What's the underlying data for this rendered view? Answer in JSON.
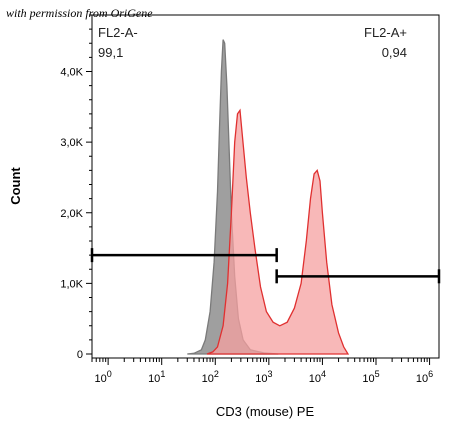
{
  "watermark": "with permission from OriGene",
  "chart_data": {
    "type": "area",
    "xlabel": "CD3 (mouse) PE",
    "ylabel": "Count",
    "x_scale": "log",
    "xlim": [
      0.5,
      1500000
    ],
    "ylim": [
      0,
      4800
    ],
    "y_ticks": [
      {
        "value": 0,
        "label": "0"
      },
      {
        "value": 1000,
        "label": "1,0K"
      },
      {
        "value": 2000,
        "label": "2,0K"
      },
      {
        "value": 3000,
        "label": "3,0K"
      },
      {
        "value": 4000,
        "label": "4,0K"
      }
    ],
    "x_ticks": [
      {
        "value": 1,
        "base": "10",
        "exp": "0"
      },
      {
        "value": 10,
        "base": "10",
        "exp": "1"
      },
      {
        "value": 100,
        "base": "10",
        "exp": "2"
      },
      {
        "value": 1000,
        "base": "10",
        "exp": "3"
      },
      {
        "value": 10000,
        "base": "10",
        "exp": "4"
      },
      {
        "value": 100000,
        "base": "10",
        "exp": "5"
      },
      {
        "value": 1000000,
        "base": "10",
        "exp": "6"
      }
    ],
    "series": [
      {
        "color": "#7a7a7a",
        "fill": "#9a9a9a",
        "points": [
          [
            30,
            0
          ],
          [
            40,
            10
          ],
          [
            55,
            60
          ],
          [
            65,
            200
          ],
          [
            80,
            600
          ],
          [
            95,
            1300
          ],
          [
            110,
            2300
          ],
          [
            120,
            3200
          ],
          [
            130,
            4000
          ],
          [
            140,
            4450
          ],
          [
            150,
            4400
          ],
          [
            165,
            3800
          ],
          [
            180,
            3000
          ],
          [
            200,
            2000
          ],
          [
            230,
            1100
          ],
          [
            270,
            500
          ],
          [
            330,
            200
          ],
          [
            450,
            60
          ],
          [
            800,
            15
          ],
          [
            1500,
            0
          ]
        ]
      },
      {
        "color": "#e03030",
        "fill": "#f5a0a0",
        "points": [
          [
            70,
            0
          ],
          [
            90,
            30
          ],
          [
            110,
            100
          ],
          [
            140,
            400
          ],
          [
            170,
            1000
          ],
          [
            200,
            2000
          ],
          [
            230,
            3000
          ],
          [
            260,
            3400
          ],
          [
            290,
            3450
          ],
          [
            320,
            3100
          ],
          [
            380,
            2500
          ],
          [
            450,
            2000
          ],
          [
            550,
            1500
          ],
          [
            700,
            950
          ],
          [
            900,
            600
          ],
          [
            1200,
            450
          ],
          [
            1600,
            400
          ],
          [
            2200,
            450
          ],
          [
            3000,
            650
          ],
          [
            4000,
            1000
          ],
          [
            5000,
            1600
          ],
          [
            6000,
            2200
          ],
          [
            7000,
            2550
          ],
          [
            8000,
            2600
          ],
          [
            9000,
            2450
          ],
          [
            10000,
            2000
          ],
          [
            12000,
            1300
          ],
          [
            15000,
            700
          ],
          [
            20000,
            300
          ],
          [
            25000,
            100
          ],
          [
            30000,
            0
          ]
        ]
      }
    ],
    "gates": [
      {
        "name": "FL2-A-",
        "value": "99,1",
        "x_start": 0.5,
        "x_end": 1400,
        "y": 1400
      },
      {
        "name": "FL2-A+",
        "value": "0,94",
        "x_start": 1400,
        "x_end": 1500000,
        "y": 1100
      }
    ]
  }
}
